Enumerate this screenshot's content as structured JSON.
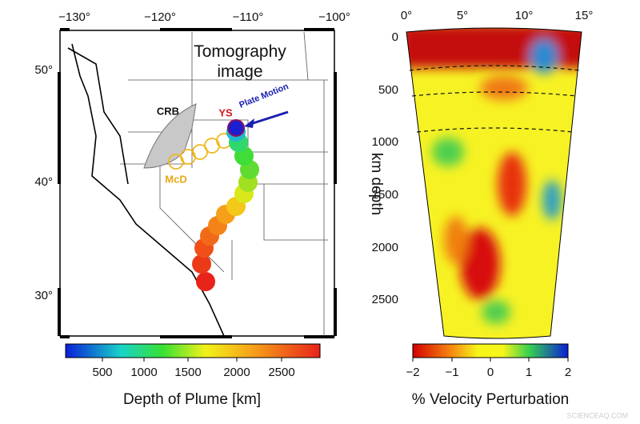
{
  "map": {
    "lon_labels": [
      "−130°",
      "−120°",
      "−110°",
      "−100°"
    ],
    "lat_labels": [
      "50°",
      "40°",
      "30°"
    ],
    "tomography_label": "Tomography image",
    "crb": "CRB",
    "ys": "YS",
    "plate_motion": "Plate Motion",
    "mcd": "McD",
    "colorbar": {
      "ticks": [
        "500",
        "1000",
        "1500",
        "2000",
        "2500"
      ],
      "label": "Depth of Plume [km]"
    }
  },
  "section": {
    "angle_labels": [
      "0°",
      "5°",
      "10°",
      "15°"
    ],
    "depth_labels": [
      "0",
      "500",
      "1000",
      "1500",
      "2000",
      "2500"
    ],
    "depth_axis": "km depth",
    "colorbar": {
      "ticks": [
        "−2",
        "−1",
        "0",
        "1",
        "2"
      ],
      "label": "% Velocity Perturbation"
    }
  },
  "watermark": "SCIENCEAQ.COM"
}
